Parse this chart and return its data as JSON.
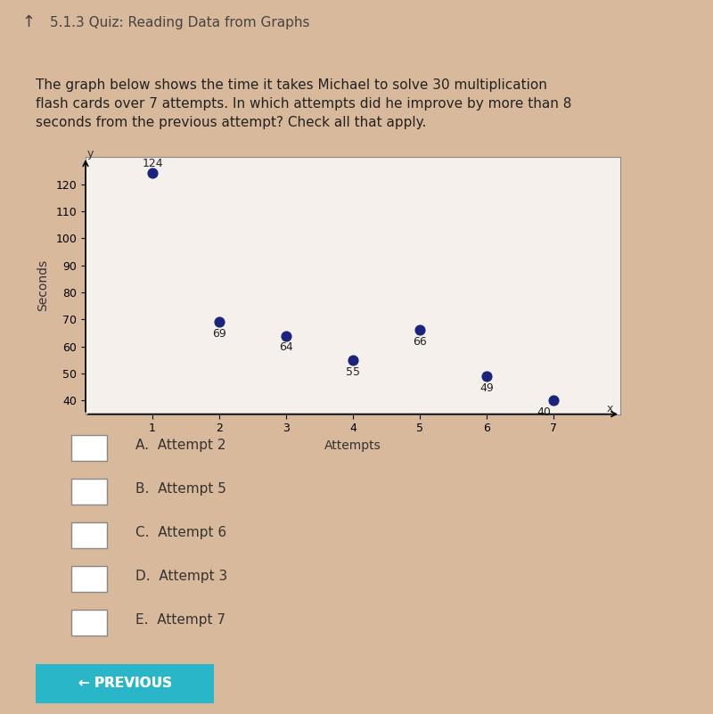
{
  "title_bar": "5.1.3 Quiz: Reading Data from Graphs",
  "question": "The graph below shows the time it takes Michael to solve 30 multiplication\nflash cards over 7 attempts. In which attempts did he improve by more than 8\nseconds from the previous attempt? Check all that apply.",
  "x_values": [
    1,
    2,
    3,
    4,
    5,
    6,
    7
  ],
  "y_values": [
    124,
    69,
    64,
    55,
    66,
    49,
    40
  ],
  "x_label": "Attempts",
  "y_label": "Seconds",
  "y_ticks": [
    40,
    50,
    60,
    70,
    80,
    90,
    100,
    110,
    120
  ],
  "x_ticks": [
    1,
    2,
    3,
    4,
    5,
    6,
    7
  ],
  "dot_color": "#1a237e",
  "dot_size": 60,
  "bg_color": "#d9b99b",
  "chart_bg": "#e8d0b8",
  "white_area": "#f5f0eb",
  "choices": [
    "A.  Attempt 2",
    "B.  Attempt 5",
    "C.  Attempt 6",
    "D.  Attempt 3",
    "E.  Attempt 7"
  ],
  "button_color": "#29b6c8",
  "button_text": "← PREVIOUS",
  "header_line_color": "#cccccc",
  "annotation_fontsize": 9,
  "axis_label_fontsize": 10,
  "tick_fontsize": 9,
  "question_fontsize": 11,
  "choice_fontsize": 11
}
